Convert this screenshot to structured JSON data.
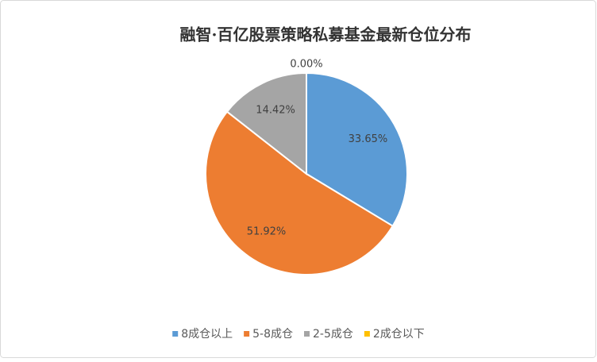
{
  "chart_data": {
    "type": "pie",
    "title": "融智·百亿股票策略私募基金最新仓位分布",
    "categories": [
      "8成仓以上",
      "5-8成仓",
      "2-5成仓",
      "2成仓以下"
    ],
    "values": [
      33.65,
      51.92,
      14.42,
      0
    ],
    "value_labels": [
      "33.65%",
      "51.92%",
      "14.42%",
      "0.00%"
    ],
    "colors": [
      "#5b9bd5",
      "#ed7d31",
      "#a5a5a5",
      "#ffc000"
    ],
    "legend": "bottom"
  }
}
